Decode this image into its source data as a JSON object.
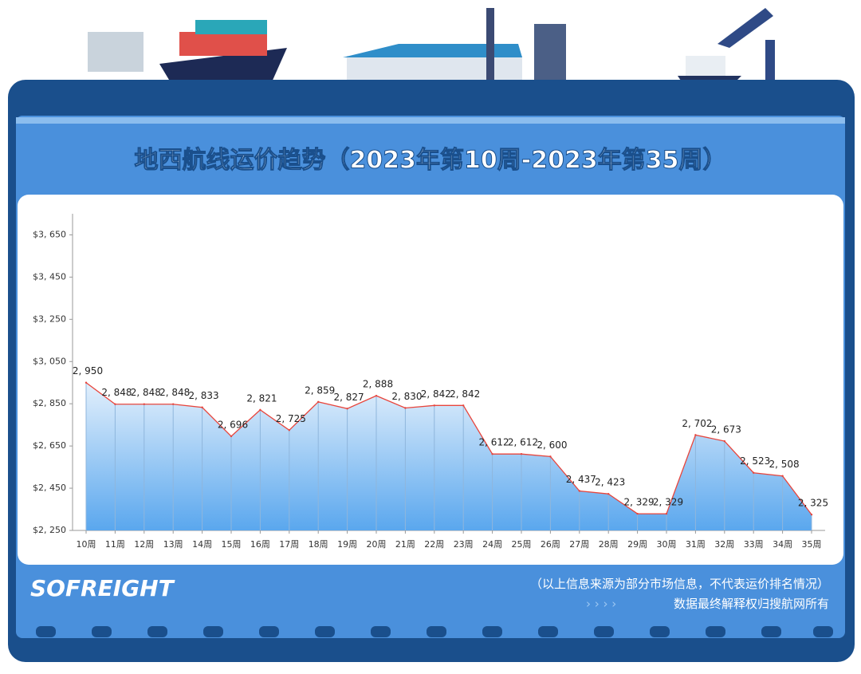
{
  "chart_data": {
    "type": "line",
    "title": "地西航线运价趋势（2023年第10周-2023年第35周）",
    "categories": [
      "10周",
      "11周",
      "12周",
      "13周",
      "14周",
      "15周",
      "16周",
      "17周",
      "18周",
      "19周",
      "20周",
      "21周",
      "22周",
      "23周",
      "24周",
      "25周",
      "26周",
      "27周",
      "28周",
      "29周",
      "30周",
      "31周",
      "32周",
      "33周",
      "34周",
      "35周"
    ],
    "values": [
      2950,
      2848,
      2848,
      2848,
      2833,
      2696,
      2821,
      2725,
      2859,
      2827,
      2888,
      2830,
      2842,
      2842,
      2612,
      2612,
      2600,
      2437,
      2423,
      2329,
      2329,
      2702,
      2673,
      2523,
      2508,
      2325
    ],
    "value_labels": [
      "2, 950",
      "2, 848",
      "2, 848",
      "2, 848",
      "2, 833",
      "2, 696",
      "2, 821",
      "2, 725",
      "2, 859",
      "2, 827",
      "2, 888",
      "2, 830",
      "2, 842",
      "2, 842",
      "2, 612",
      "2, 612",
      "2, 600",
      "2, 437",
      "2, 423",
      "2, 329",
      "2, 329",
      "2, 702",
      "2, 673",
      "2, 523",
      "2, 508",
      "2, 325"
    ],
    "color": "#e8453c",
    "ylim": [
      2250,
      3750
    ],
    "yticks": [
      {
        "value": 2250,
        "label": "$2, 250"
      },
      {
        "value": 2450,
        "label": "$2, 450"
      },
      {
        "value": 2650,
        "label": "$2, 650"
      },
      {
        "value": 2850,
        "label": "$2, 850"
      },
      {
        "value": 3050,
        "label": "$3, 050"
      },
      {
        "value": 3250,
        "label": "$3, 250"
      },
      {
        "value": 3450,
        "label": "$3, 450"
      },
      {
        "value": 3650,
        "label": "$3, 650"
      }
    ]
  },
  "footer": {
    "logo": "SOFREIGHT",
    "note": "（以上信息来源为部分市场信息，不代表运价排名情况）",
    "rights": "数据最终解释权归搜航网所有"
  }
}
